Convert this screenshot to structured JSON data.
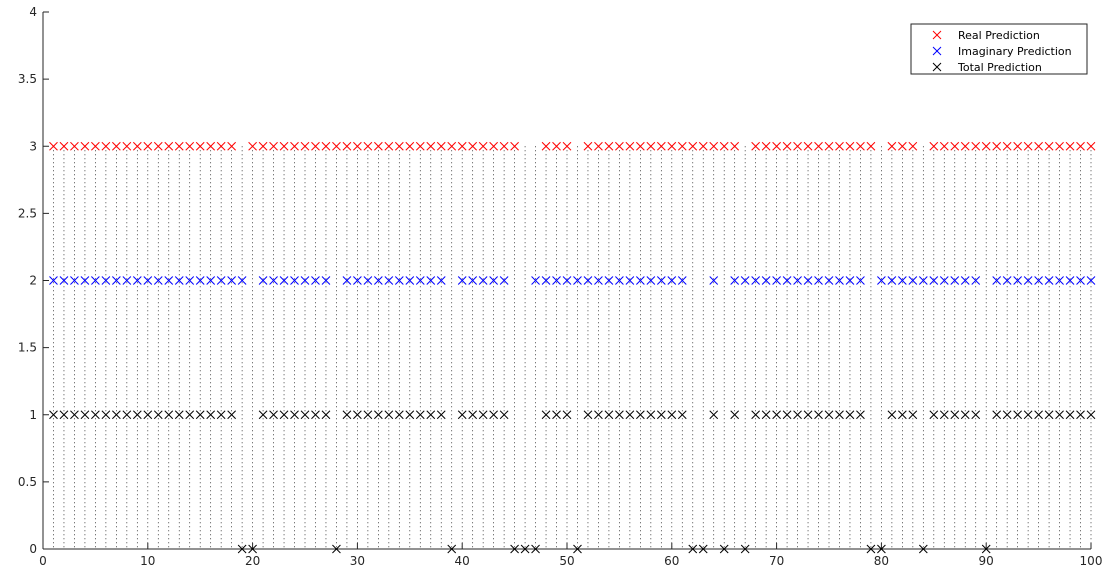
{
  "chart_data": {
    "type": "scatter",
    "marker": "x",
    "x_range": [
      0,
      100
    ],
    "y_range": [
      0,
      4
    ],
    "xticks": [
      0,
      10,
      20,
      30,
      40,
      50,
      60,
      70,
      80,
      90,
      100
    ],
    "yticks": [
      0,
      0.5,
      1,
      1.5,
      2,
      2.5,
      3,
      3.5,
      4
    ],
    "xtick_labels": [
      "0",
      "10",
      "20",
      "30",
      "40",
      "50",
      "60",
      "70",
      "80",
      "90",
      "100"
    ],
    "ytick_labels": [
      "0",
      "0.5",
      "1",
      "1.5",
      "2",
      "2.5",
      "3",
      "3.5",
      "4"
    ],
    "grid": false,
    "vertical_dotted_lines": true,
    "vertical_lines_x": [
      1,
      2,
      3,
      4,
      5,
      6,
      7,
      8,
      9,
      10,
      11,
      12,
      13,
      14,
      15,
      16,
      17,
      18,
      19,
      20,
      21,
      22,
      23,
      24,
      25,
      26,
      27,
      28,
      29,
      30,
      31,
      32,
      33,
      34,
      35,
      36,
      37,
      38,
      39,
      40,
      41,
      42,
      43,
      44,
      45,
      46,
      47,
      48,
      49,
      50,
      51,
      52,
      53,
      54,
      55,
      56,
      57,
      58,
      59,
      60,
      61,
      62,
      63,
      64,
      65,
      66,
      67,
      68,
      69,
      70,
      71,
      72,
      73,
      74,
      75,
      76,
      77,
      78,
      79,
      80,
      81,
      82,
      83,
      84,
      85,
      86,
      87,
      88,
      89,
      90,
      91,
      92,
      93,
      94,
      95,
      96,
      97,
      98,
      99,
      100
    ],
    "legend_position": "top-right",
    "series": [
      {
        "name": "Real Prediction",
        "color": "#ff0000",
        "y": 3,
        "x": [
          1,
          2,
          3,
          4,
          5,
          6,
          7,
          8,
          9,
          10,
          11,
          12,
          13,
          14,
          15,
          16,
          17,
          18,
          20,
          21,
          22,
          23,
          24,
          25,
          26,
          27,
          28,
          29,
          30,
          31,
          32,
          33,
          34,
          35,
          36,
          37,
          38,
          39,
          40,
          41,
          42,
          43,
          44,
          45,
          48,
          49,
          50,
          52,
          53,
          54,
          55,
          56,
          57,
          58,
          59,
          60,
          61,
          62,
          63,
          64,
          65,
          66,
          68,
          69,
          70,
          71,
          72,
          73,
          74,
          75,
          76,
          77,
          78,
          79,
          81,
          82,
          83,
          85,
          86,
          87,
          88,
          89,
          90,
          91,
          92,
          93,
          94,
          95,
          96,
          97,
          98,
          99,
          100
        ]
      },
      {
        "name": "Imaginary Prediction",
        "color": "#0000ff",
        "y": 2,
        "x": [
          1,
          2,
          3,
          4,
          5,
          6,
          7,
          8,
          9,
          10,
          11,
          12,
          13,
          14,
          15,
          16,
          17,
          18,
          19,
          21,
          22,
          23,
          24,
          25,
          26,
          27,
          29,
          30,
          31,
          32,
          33,
          34,
          35,
          36,
          37,
          38,
          40,
          41,
          42,
          43,
          44,
          47,
          48,
          49,
          50,
          51,
          52,
          53,
          54,
          55,
          56,
          57,
          58,
          59,
          60,
          61,
          64,
          66,
          67,
          68,
          69,
          70,
          71,
          72,
          73,
          74,
          75,
          76,
          77,
          78,
          80,
          81,
          82,
          83,
          84,
          85,
          86,
          87,
          88,
          89,
          91,
          92,
          93,
          94,
          95,
          96,
          97,
          98,
          99,
          100
        ]
      },
      {
        "name": "Total Prediction",
        "color": "#000000",
        "points": [
          [
            1,
            1
          ],
          [
            2,
            1
          ],
          [
            3,
            1
          ],
          [
            4,
            1
          ],
          [
            5,
            1
          ],
          [
            6,
            1
          ],
          [
            7,
            1
          ],
          [
            8,
            1
          ],
          [
            9,
            1
          ],
          [
            10,
            1
          ],
          [
            11,
            1
          ],
          [
            12,
            1
          ],
          [
            13,
            1
          ],
          [
            14,
            1
          ],
          [
            15,
            1
          ],
          [
            16,
            1
          ],
          [
            17,
            1
          ],
          [
            18,
            1
          ],
          [
            19,
            0
          ],
          [
            20,
            0
          ],
          [
            21,
            1
          ],
          [
            22,
            1
          ],
          [
            23,
            1
          ],
          [
            24,
            1
          ],
          [
            25,
            1
          ],
          [
            26,
            1
          ],
          [
            27,
            1
          ],
          [
            28,
            0
          ],
          [
            29,
            1
          ],
          [
            30,
            1
          ],
          [
            31,
            1
          ],
          [
            32,
            1
          ],
          [
            33,
            1
          ],
          [
            34,
            1
          ],
          [
            35,
            1
          ],
          [
            36,
            1
          ],
          [
            37,
            1
          ],
          [
            38,
            1
          ],
          [
            39,
            0
          ],
          [
            40,
            1
          ],
          [
            41,
            1
          ],
          [
            42,
            1
          ],
          [
            43,
            1
          ],
          [
            44,
            1
          ],
          [
            45,
            0
          ],
          [
            46,
            0
          ],
          [
            47,
            0
          ],
          [
            48,
            1
          ],
          [
            49,
            1
          ],
          [
            50,
            1
          ],
          [
            51,
            0
          ],
          [
            52,
            1
          ],
          [
            53,
            1
          ],
          [
            54,
            1
          ],
          [
            55,
            1
          ],
          [
            56,
            1
          ],
          [
            57,
            1
          ],
          [
            58,
            1
          ],
          [
            59,
            1
          ],
          [
            60,
            1
          ],
          [
            61,
            1
          ],
          [
            62,
            0
          ],
          [
            63,
            0
          ],
          [
            64,
            1
          ],
          [
            65,
            0
          ],
          [
            66,
            1
          ],
          [
            67,
            0
          ],
          [
            68,
            1
          ],
          [
            69,
            1
          ],
          [
            70,
            1
          ],
          [
            71,
            1
          ],
          [
            72,
            1
          ],
          [
            73,
            1
          ],
          [
            74,
            1
          ],
          [
            75,
            1
          ],
          [
            76,
            1
          ],
          [
            77,
            1
          ],
          [
            78,
            1
          ],
          [
            79,
            0
          ],
          [
            80,
            0
          ],
          [
            81,
            1
          ],
          [
            82,
            1
          ],
          [
            83,
            1
          ],
          [
            84,
            0
          ],
          [
            85,
            1
          ],
          [
            86,
            1
          ],
          [
            87,
            1
          ],
          [
            88,
            1
          ],
          [
            89,
            1
          ],
          [
            90,
            0
          ],
          [
            91,
            1
          ],
          [
            92,
            1
          ],
          [
            93,
            1
          ],
          [
            94,
            1
          ],
          [
            95,
            1
          ],
          [
            96,
            1
          ],
          [
            97,
            1
          ],
          [
            98,
            1
          ],
          [
            99,
            1
          ],
          [
            100,
            1
          ]
        ]
      }
    ]
  }
}
